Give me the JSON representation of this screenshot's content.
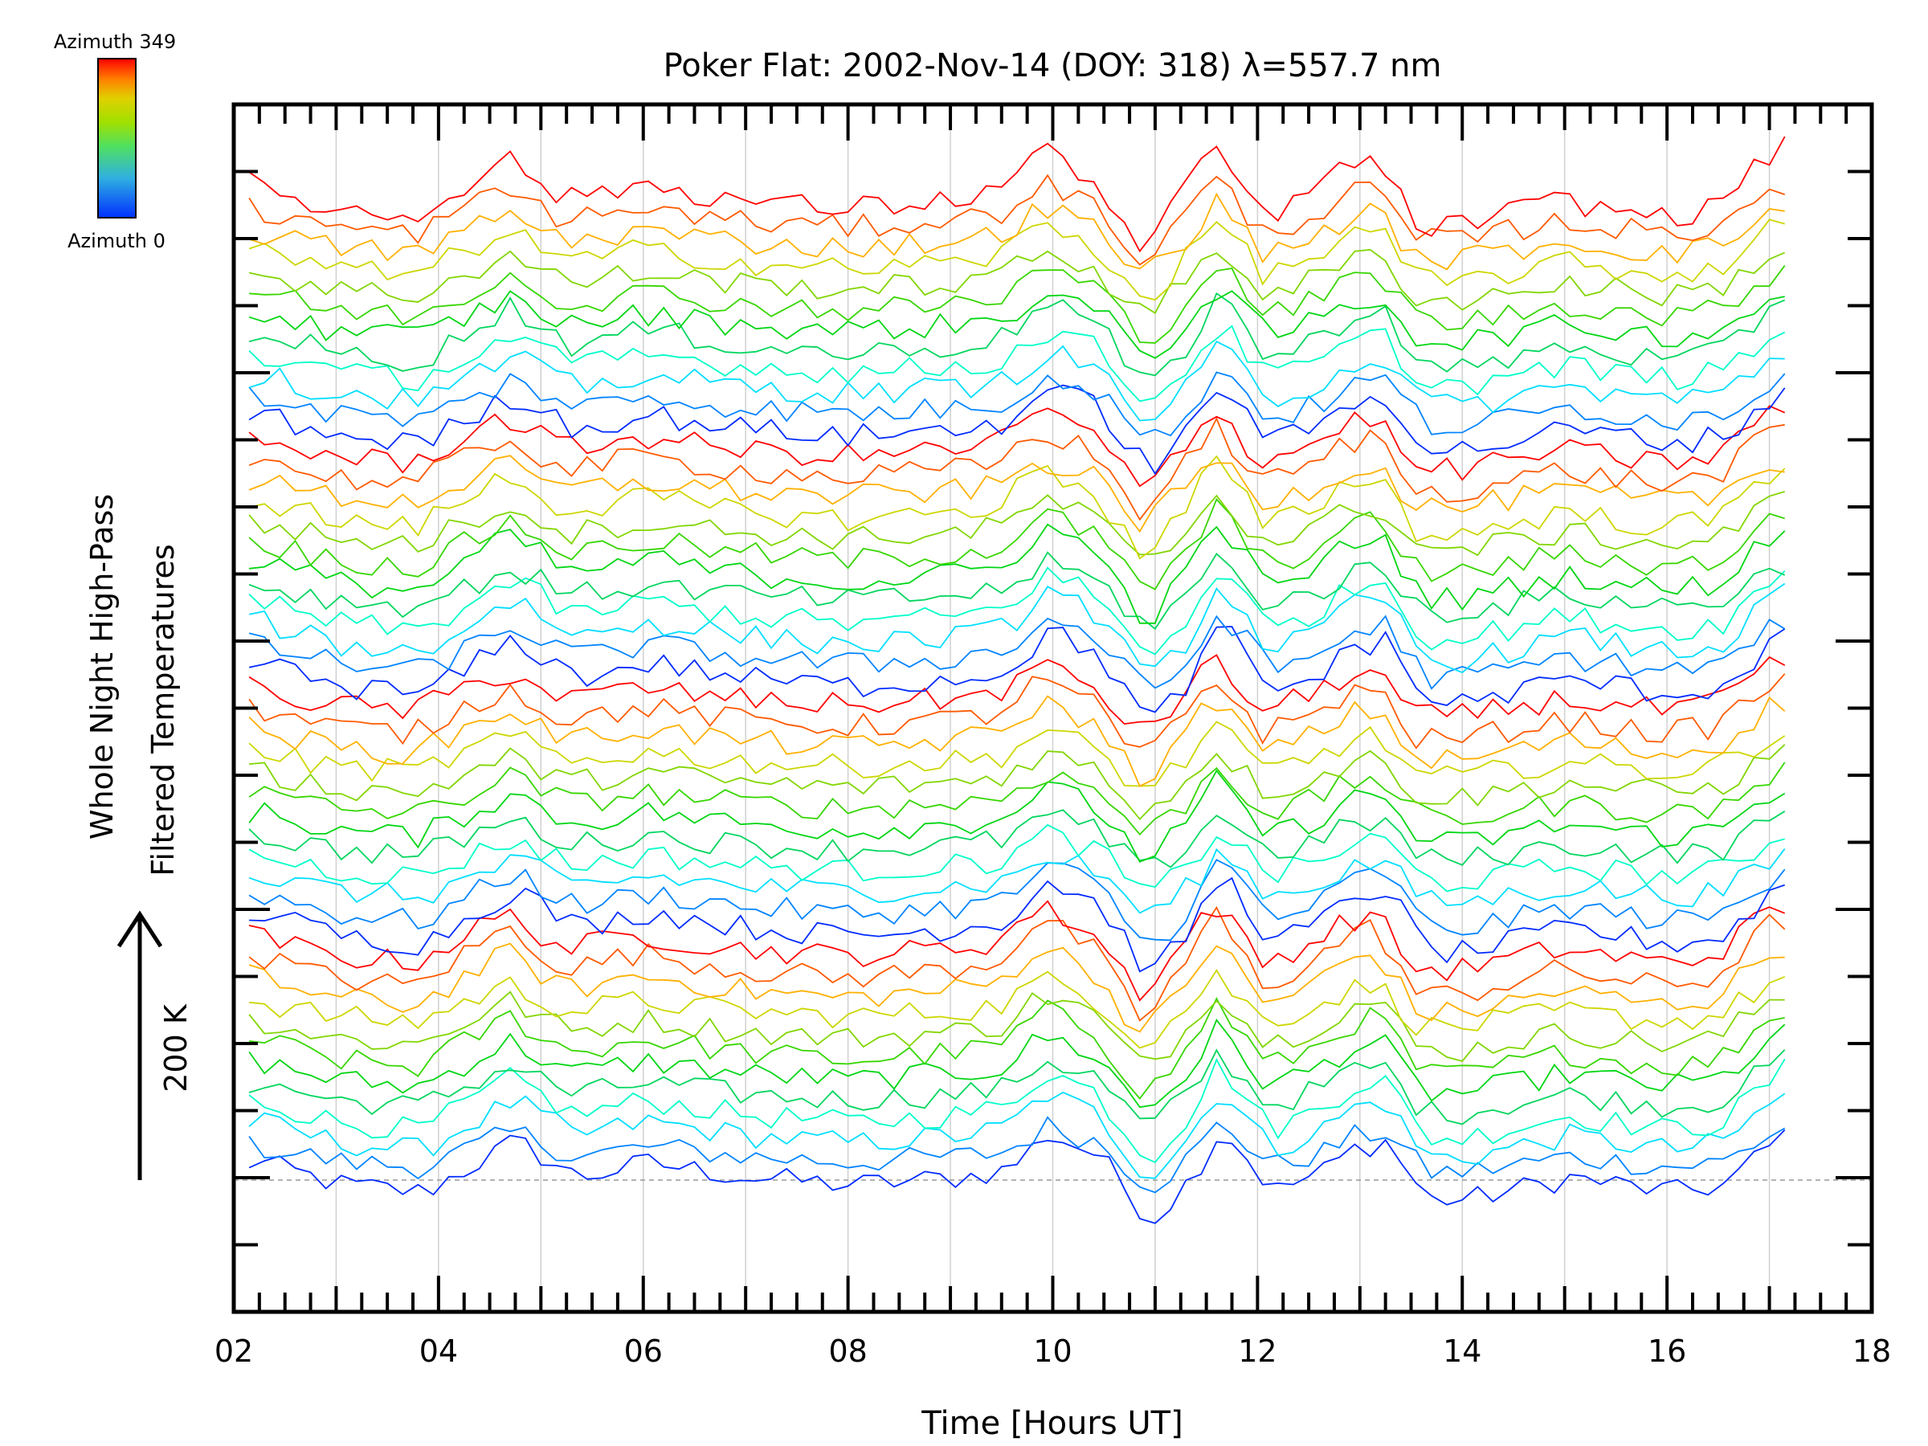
{
  "chart_data": {
    "type": "line",
    "title": "Poker Flat: 2002-Nov-14 (DOY: 318) λ=557.7 nm",
    "xlabel": "Time [Hours UT]",
    "ylabel_line1": "Whole Night High-Pass",
    "ylabel_line2": "Filtered Temperatures",
    "scale_bar_label": "200 K",
    "scale_bar_value_k": 200,
    "xlim": [
      2,
      18
    ],
    "ylim_k": [
      -100,
      800
    ],
    "x_tick_labels": [
      "02",
      "04",
      "06",
      "08",
      "10",
      "12",
      "14",
      "16",
      "18"
    ],
    "x_ticks": [
      2,
      4,
      6,
      8,
      10,
      12,
      14,
      16,
      18
    ],
    "x_grid_hours": [
      3,
      4,
      5,
      6,
      7,
      8,
      9,
      10,
      11,
      12,
      13,
      14,
      15,
      16,
      17
    ],
    "baseline_k": 0,
    "colorbar": {
      "top_label": "Azimuth  349",
      "bottom_label": "Azimuth  0",
      "min": 0,
      "max": 349
    },
    "data_start_hour": 2.15,
    "data_end_hour": 17.15,
    "sample_step_hours": 0.15,
    "profile_hours": [
      2.2,
      3,
      3.8,
      4.7,
      5.3,
      6,
      7,
      8,
      9,
      9.5,
      9.9,
      10.4,
      10.9,
      11.3,
      11.6,
      12.1,
      12.6,
      12.9,
      13.2,
      13.6,
      14,
      15,
      16,
      16.5,
      17.1
    ],
    "profile_k": [
      10,
      -5,
      -10,
      25,
      0,
      10,
      0,
      -5,
      0,
      5,
      30,
      15,
      -30,
      0,
      35,
      -10,
      5,
      20,
      25,
      -15,
      -15,
      0,
      -10,
      -5,
      30
    ],
    "series_offset_step_k": 15.5,
    "groups": 4,
    "azimuths": [
      0,
      32,
      64,
      95,
      127,
      159,
      190,
      222,
      254,
      286,
      317,
      349
    ],
    "noise_k": 9
  }
}
